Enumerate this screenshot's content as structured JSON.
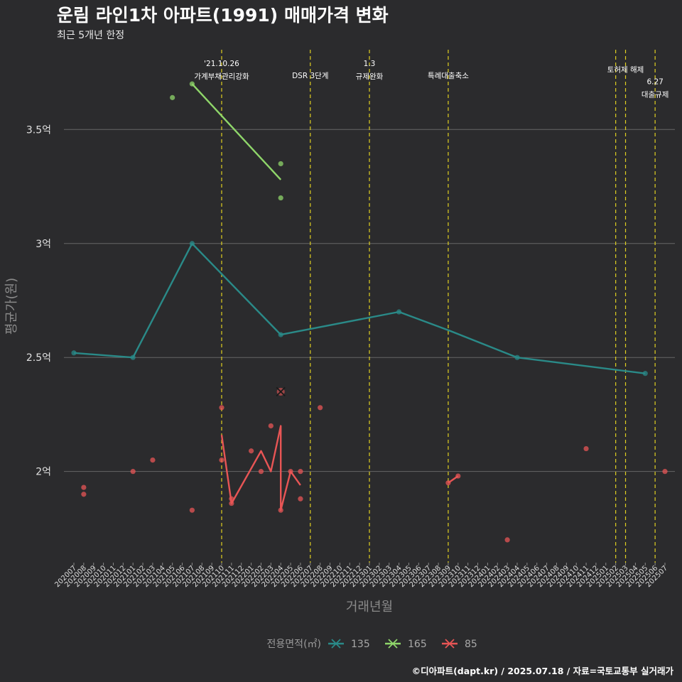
{
  "title": "운림 라인1차 아파트(1991) 매매가격 변화",
  "subtitle": "최근 5개년 한정",
  "caption": "©디아파트(dapt.kr) / 2025.07.18 / 자료=국토교통부 실거래가",
  "chart_data": {
    "type": "line",
    "xlabel": "거래년월",
    "ylabel": "평균가(원)",
    "ylim": [
      1.6,
      3.85
    ],
    "yticks": [
      2.0,
      2.5,
      3.0,
      3.5
    ],
    "ytick_labels": [
      "2억",
      "2.5억",
      "3억",
      "3.5억"
    ],
    "x_categories": [
      "202007",
      "202008",
      "202009",
      "202010",
      "202011",
      "202012",
      "202101",
      "202102",
      "202103",
      "202104",
      "202105",
      "202106",
      "202107",
      "202108",
      "202109",
      "202110",
      "202111",
      "202112",
      "202201",
      "202202",
      "202203",
      "202204",
      "202205",
      "202206",
      "202207",
      "202208",
      "202209",
      "202210",
      "202211",
      "202212",
      "202301",
      "202302",
      "202303",
      "202304",
      "202305",
      "202306",
      "202307",
      "202308",
      "202309",
      "202310",
      "202311",
      "202312",
      "202401",
      "202402",
      "202403",
      "202404",
      "202405",
      "202406",
      "202407",
      "202408",
      "202409",
      "202410",
      "202411",
      "202412",
      "202501",
      "202502",
      "202503",
      "202504",
      "202505",
      "202506",
      "202507"
    ],
    "legend_title": "전용면적(㎡)",
    "series": [
      {
        "name": "135",
        "color": "#2a8a88",
        "line": [
          [
            "202007",
            2.52
          ],
          [
            "202101",
            2.5
          ],
          [
            "202107",
            3.0
          ],
          [
            "202204",
            2.6
          ],
          [
            "202304",
            2.7
          ],
          [
            "202309",
            2.62
          ],
          [
            "202404",
            2.5
          ],
          [
            "202505",
            2.43
          ]
        ],
        "points": [
          [
            "202007",
            2.52
          ],
          [
            "202101",
            2.5
          ],
          [
            "202107",
            3.0
          ],
          [
            "202204",
            2.6
          ],
          [
            "202304",
            2.7
          ],
          [
            "202404",
            2.5
          ],
          [
            "202505",
            2.43
          ]
        ]
      },
      {
        "name": "165",
        "color": "#8fd66a",
        "line": [
          [
            "202107",
            3.7
          ],
          [
            "202204",
            3.28
          ]
        ],
        "points": [
          [
            "202105",
            3.64
          ],
          [
            "202107",
            3.7
          ],
          [
            "202204",
            3.35
          ],
          [
            "202204",
            3.2
          ]
        ]
      },
      {
        "name": "85",
        "color": "#e85555",
        "line": [
          [
            "202110",
            2.16
          ],
          [
            "202111",
            1.86
          ],
          [
            "202202",
            2.09
          ],
          [
            "202203",
            2.0
          ],
          [
            "202204",
            2.2
          ],
          [
            "202204",
            1.83
          ],
          [
            "202205",
            2.0
          ],
          [
            "202206",
            1.94
          ]
        ],
        "line2": [
          [
            "202309",
            1.95
          ],
          [
            "202310",
            1.98
          ]
        ],
        "points": [
          [
            "202008",
            1.93
          ],
          [
            "202008",
            1.9
          ],
          [
            "202101",
            2.0
          ],
          [
            "202103",
            2.05
          ],
          [
            "202107",
            1.83
          ],
          [
            "202110",
            2.28
          ],
          [
            "202110",
            2.05
          ],
          [
            "202111",
            1.88
          ],
          [
            "202111",
            1.86
          ],
          [
            "202201",
            2.09
          ],
          [
            "202202",
            2.0
          ],
          [
            "202203",
            2.2
          ],
          [
            "202204",
            1.83
          ],
          [
            "202205",
            2.0
          ],
          [
            "202206",
            2.0
          ],
          [
            "202206",
            1.88
          ],
          [
            "202208",
            2.28
          ],
          [
            "202309",
            1.95
          ],
          [
            "202310",
            1.98
          ],
          [
            "202403",
            1.7
          ],
          [
            "202411",
            2.1
          ],
          [
            "202507",
            2.0
          ]
        ],
        "marker_x": [
          "202204",
          2.35
        ]
      }
    ],
    "events": [
      {
        "x": "202110",
        "lines": [
          "'21.10.26",
          "가계부채관리강화"
        ],
        "offset": 0
      },
      {
        "x": "202207",
        "lines": [
          "DSR 3단계"
        ],
        "offset": 1
      },
      {
        "x": "202301",
        "lines": [
          "1.3",
          "규제완화"
        ],
        "offset": 0
      },
      {
        "x": "202309",
        "lines": [
          "특례대출축소"
        ],
        "offset": 1
      },
      {
        "x": "202502",
        "lines": [],
        "offset": 0
      },
      {
        "x": "202503",
        "lines": [
          "토허제 해제"
        ],
        "offset": 0.5
      },
      {
        "x": "202506",
        "lines": [
          "6.27",
          "대출규제"
        ],
        "offset": 1.5
      }
    ]
  }
}
